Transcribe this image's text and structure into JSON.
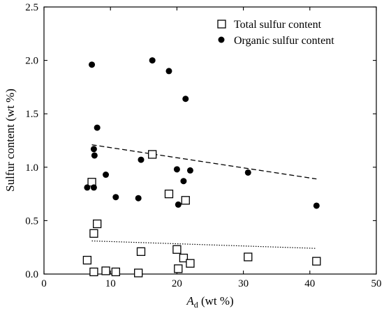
{
  "chart_data": {
    "type": "scatter",
    "xlabel_main": "A",
    "xlabel_sub": "d",
    "xlabel_unit": " (wt %)",
    "ylabel": "Sulfur content (wt %)",
    "xlim": [
      0,
      50
    ],
    "ylim": [
      0,
      2.5
    ],
    "xticks": [
      0,
      10,
      20,
      30,
      40,
      50
    ],
    "yticks": [
      0.0,
      0.5,
      1.0,
      1.5,
      2.0,
      2.5
    ],
    "ytick_labels": [
      "0.0",
      "0.5",
      "1.0",
      "1.5",
      "2.0",
      "2.5"
    ],
    "xtick_labels": [
      "0",
      "10",
      "20",
      "30",
      "40",
      "50"
    ],
    "grid": false,
    "legend_position": "top-right",
    "series": [
      {
        "name": "Total sulfur content",
        "marker": "open-square",
        "color": "#000000",
        "points": [
          [
            6.5,
            0.13
          ],
          [
            7.2,
            0.86
          ],
          [
            7.5,
            0.38
          ],
          [
            7.5,
            0.02
          ],
          [
            8.0,
            0.47
          ],
          [
            9.3,
            0.03
          ],
          [
            10.8,
            0.02
          ],
          [
            14.2,
            0.01
          ],
          [
            14.6,
            0.21
          ],
          [
            16.3,
            1.12
          ],
          [
            18.8,
            0.75
          ],
          [
            20.0,
            0.23
          ],
          [
            20.2,
            0.05
          ],
          [
            21.0,
            0.15
          ],
          [
            21.3,
            0.69
          ],
          [
            22.0,
            0.1
          ],
          [
            30.7,
            0.16
          ],
          [
            41.0,
            0.12
          ]
        ]
      },
      {
        "name": "Organic sulfur content",
        "marker": "filled-circle",
        "color": "#000000",
        "points": [
          [
            6.5,
            0.81
          ],
          [
            7.2,
            1.96
          ],
          [
            7.5,
            0.81
          ],
          [
            7.5,
            1.17
          ],
          [
            7.6,
            1.11
          ],
          [
            8.0,
            1.37
          ],
          [
            9.3,
            0.93
          ],
          [
            10.8,
            0.72
          ],
          [
            14.2,
            0.71
          ],
          [
            14.6,
            1.07
          ],
          [
            16.3,
            2.0
          ],
          [
            18.8,
            1.9
          ],
          [
            20.0,
            0.98
          ],
          [
            20.2,
            0.65
          ],
          [
            21.0,
            0.87
          ],
          [
            21.3,
            1.64
          ],
          [
            22.0,
            0.97
          ],
          [
            30.7,
            0.95
          ],
          [
            41.0,
            0.64
          ]
        ]
      }
    ],
    "trendlines": [
      {
        "series": "Organic sulfur content",
        "style": "dashed",
        "from": [
          7.2,
          1.21
        ],
        "to": [
          41.0,
          0.89
        ]
      },
      {
        "series": "Total sulfur content",
        "style": "dotted",
        "from": [
          7.2,
          0.31
        ],
        "to": [
          41.0,
          0.24
        ]
      }
    ]
  }
}
